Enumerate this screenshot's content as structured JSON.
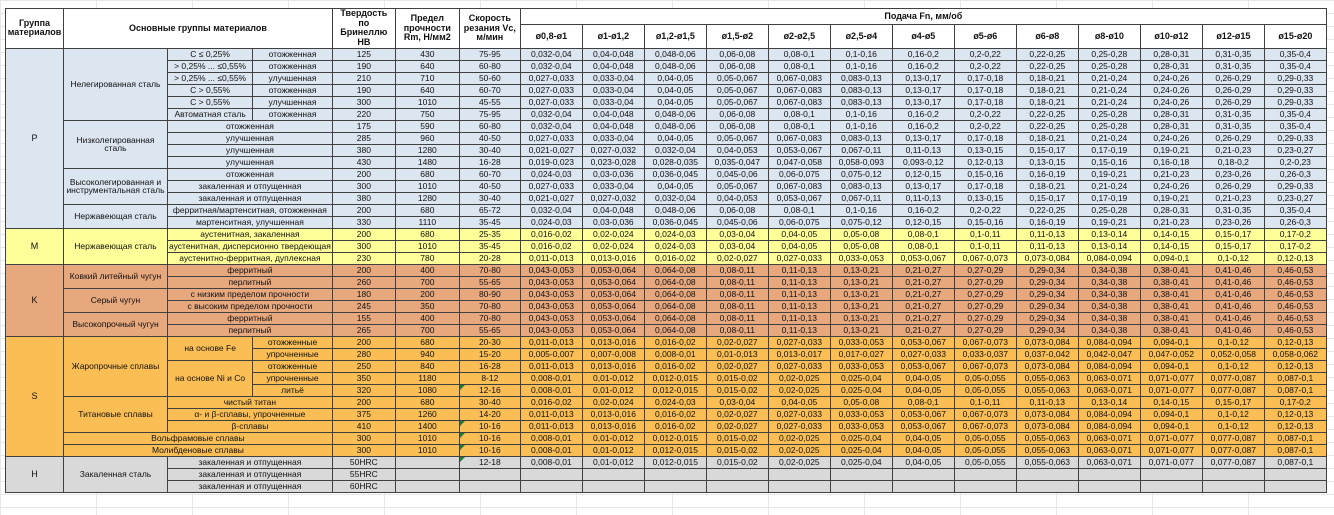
{
  "header": {
    "col_group": "Группа материалов",
    "col_main_groups": "Основные группы материалов",
    "col_hardness": "Твердость по Бринеллю HB",
    "col_strength": "Предел прочности Rm, Н/мм2",
    "col_speed": "Скорость резания Vc, м/мин",
    "feed_title": "Подача Fn, мм/об",
    "feed_cols": [
      "ø0,8-ø1",
      "ø1-ø1,2",
      "ø1,2-ø1,5",
      "ø1,5-ø2",
      "ø2-ø2,5",
      "ø2,5-ø4",
      "ø4-ø5",
      "ø5-ø6",
      "ø6-ø8",
      "ø8-ø10",
      "ø10-ø12",
      "ø12-ø15",
      "ø15-ø20"
    ]
  },
  "colors": {
    "P": "#dce6f1",
    "M": "#ffff99",
    "K": "#e8a87e",
    "S": "#fbbe55",
    "H": "#d9d9d9",
    "border": "#404040",
    "grid": "#e7e7e7",
    "marker_green": "#1e7e34"
  },
  "feed_profiles": {
    "A": [
      "0,032-0,04",
      "0,04-0,048",
      "0,048-0,06",
      "0,06-0,08",
      "0,08-0,1",
      "0,1-0,16",
      "0,16-0,2",
      "0,2-0,22",
      "0,22-0,25",
      "0,25-0,28",
      "0,28-0,31",
      "0,31-0,35",
      "0,35-0,4"
    ],
    "B": [
      "0,027-0,033",
      "0,033-0,04",
      "0,04-0,05",
      "0,05-0,067",
      "0,067-0,083",
      "0,083-0,13",
      "0,13-0,17",
      "0,17-0,18",
      "0,18-0,21",
      "0,21-0,24",
      "0,24-0,26",
      "0,26-0,29",
      "0,29-0,33"
    ],
    "C": [
      "0,021-0,027",
      "0,027-0,032",
      "0,032-0,04",
      "0,04-0,053",
      "0,053-0,067",
      "0,067-0,11",
      "0,11-0,13",
      "0,13-0,15",
      "0,15-0,17",
      "0,17-0,19",
      "0,19-0,21",
      "0,21-0,23",
      "0,23-0,27"
    ],
    "D": [
      "0,024-0,03",
      "0,03-0,036",
      "0,036-0,045",
      "0,045-0,06",
      "0,06-0,075",
      "0,075-0,12",
      "0,12-0,15",
      "0,15-0,16",
      "0,16-0,19",
      "0,19-0,21",
      "0,21-0,23",
      "0,23-0,26",
      "0,26-0,3"
    ],
    "E": [
      "0,019-0,023",
      "0,023-0,028",
      "0,028-0,035",
      "0,035-0,047",
      "0,047-0,058",
      "0,058-0,093",
      "0,093-0,12",
      "0,12-0,13",
      "0,13-0,15",
      "0,15-0,16",
      "0,16-0,18",
      "0,18-0,2",
      "0,2-0,23"
    ],
    "F": [
      "0,016-0,02",
      "0,02-0,024",
      "0,024-0,03",
      "0,03-0,04",
      "0,04-0,05",
      "0,05-0,08",
      "0,08-0,1",
      "0,1-0,11",
      "0,11-0,13",
      "0,13-0,14",
      "0,14-0,15",
      "0,15-0,17",
      "0,17-0,2"
    ],
    "G": [
      "0,011-0,013",
      "0,013-0,016",
      "0,016-0,02",
      "0,02-0,027",
      "0,027-0,033",
      "0,033-0,053",
      "0,053-0,067",
      "0,067-0,073",
      "0,073-0,084",
      "0,084-0,094",
      "0,094-0,1",
      "0,1-0,12",
      "0,12-0,13"
    ],
    "H": [
      "0,043-0,053",
      "0,053-0,064",
      "0,064-0,08",
      "0,08-0,11",
      "0,11-0,13",
      "0,13-0,21",
      "0,21-0,27",
      "0,27-0,29",
      "0,29-0,34",
      "0,34-0,38",
      "0,38-0,41",
      "0,41-0,46",
      "0,46-0,53"
    ],
    "I": [
      "0,005-0,007",
      "0,007-0,008",
      "0,008-0,01",
      "0,01-0,013",
      "0,013-0,017",
      "0,017-0,027",
      "0,027-0,033",
      "0,033-0,037",
      "0,037-0,042",
      "0,042-0,047",
      "0,047-0,052",
      "0,052-0,058",
      "0,058-0,062"
    ],
    "J": [
      "0,008-0,01",
      "0,01-0,012",
      "0,012-0,015",
      "0,015-0,02",
      "0,02-0,025",
      "0,025-0,04",
      "0,04-0,05",
      "0,05-0,055",
      "0,055-0,063",
      "0,063-0,071",
      "0,071-0,077",
      "0,077-0,087",
      "0,087-0,1"
    ],
    "EMPTY": [
      "",
      "",
      "",
      "",
      "",
      "",
      "",
      "",
      "",
      "",
      "",
      "",
      ""
    ]
  },
  "rows": [
    {
      "g": "P",
      "group": "P",
      "group_rowspan": 15,
      "labels": [
        {
          "t": "Нелегированная сталь",
          "rs": 6
        },
        {
          "t": "C ≤ 0,25%"
        },
        {
          "t": "отожженная"
        }
      ],
      "hb": "125",
      "rm": "430",
      "vc": "75-95",
      "profile": "A"
    },
    {
      "g": "P",
      "labels": [
        {
          "t": "> 0,25% ... ≤0,55%",
          "clip": true
        },
        {
          "t": "отожженная"
        }
      ],
      "hb": "190",
      "rm": "640",
      "vc": "60-80",
      "profile": "A"
    },
    {
      "g": "P",
      "labels": [
        {
          "t": "> 0,25% ... ≤0,55%",
          "clip": true
        },
        {
          "t": "улучшенная"
        }
      ],
      "hb": "210",
      "rm": "710",
      "vc": "50-60",
      "profile": "B"
    },
    {
      "g": "P",
      "labels": [
        {
          "t": "C > 0,55%"
        },
        {
          "t": "отожженная"
        }
      ],
      "hb": "190",
      "rm": "640",
      "vc": "60-70",
      "profile": "B"
    },
    {
      "g": "P",
      "labels": [
        {
          "t": "C > 0,55%"
        },
        {
          "t": "улучшенная"
        }
      ],
      "hb": "300",
      "rm": "1010",
      "vc": "45-55",
      "profile": "B"
    },
    {
      "g": "P",
      "labels": [
        {
          "t": "Автоматная сталь",
          "clip": true
        },
        {
          "t": "отожженная"
        }
      ],
      "hb": "220",
      "rm": "750",
      "vc": "75-95",
      "profile": "A"
    },
    {
      "g": "P",
      "labels": [
        {
          "t": "Низколегированная сталь",
          "rs": 4
        },
        {
          "t": "отожженная",
          "cs": 2
        }
      ],
      "hb": "175",
      "rm": "590",
      "vc": "60-80",
      "profile": "A"
    },
    {
      "g": "P",
      "labels": [
        {
          "t": "улучшенная",
          "cs": 2
        }
      ],
      "hb": "285",
      "rm": "960",
      "vc": "40-50",
      "profile": "B"
    },
    {
      "g": "P",
      "labels": [
        {
          "t": "улучшенная",
          "cs": 2
        }
      ],
      "hb": "380",
      "rm": "1280",
      "vc": "30-40",
      "profile": "C"
    },
    {
      "g": "P",
      "labels": [
        {
          "t": "улучшенная",
          "cs": 2
        }
      ],
      "hb": "430",
      "rm": "1480",
      "vc": "16-28",
      "profile": "E"
    },
    {
      "g": "P",
      "labels": [
        {
          "t": "Высоколегированная и инструментальная сталь",
          "rs": 3
        },
        {
          "t": "отожженная",
          "cs": 2
        }
      ],
      "hb": "200",
      "rm": "680",
      "vc": "60-70",
      "profile": "D"
    },
    {
      "g": "P",
      "labels": [
        {
          "t": "закаленная и отпущенная",
          "cs": 2
        }
      ],
      "hb": "300",
      "rm": "1010",
      "vc": "40-50",
      "profile": "B"
    },
    {
      "g": "P",
      "labels": [
        {
          "t": "закаленная и отпущенная",
          "cs": 2
        }
      ],
      "hb": "380",
      "rm": "1280",
      "vc": "30-40",
      "profile": "C"
    },
    {
      "g": "P",
      "labels": [
        {
          "t": "Нержавеющая сталь",
          "rs": 2
        },
        {
          "t": "ферритная/мартенситная, отожженная",
          "cs": 2,
          "clip": true
        }
      ],
      "hb": "200",
      "rm": "680",
      "vc": "65-72",
      "profile": "A"
    },
    {
      "g": "P",
      "labels": [
        {
          "t": "мартенситная, улучшенная",
          "cs": 2
        }
      ],
      "hb": "330",
      "rm": "1110",
      "vc": "35-45",
      "profile": "D"
    },
    {
      "g": "M",
      "group": "M",
      "group_rowspan": 3,
      "labels": [
        {
          "t": "Нержавеющая сталь",
          "rs": 3
        },
        {
          "t": "аустенитная, закаленная",
          "cs": 2
        }
      ],
      "hb": "200",
      "rm": "680",
      "vc": "25-35",
      "profile": "F"
    },
    {
      "g": "M",
      "labels": [
        {
          "t": "аустенитная, дисперсионно твердеющая",
          "cs": 2,
          "clip": true
        }
      ],
      "hb": "300",
      "rm": "1010",
      "vc": "35-45",
      "profile": "F"
    },
    {
      "g": "M",
      "labels": [
        {
          "t": "аустенитно-ферритная, дуплексная",
          "cs": 2,
          "clip": true
        }
      ],
      "hb": "230",
      "rm": "780",
      "vc": "20-28",
      "profile": "G"
    },
    {
      "g": "K",
      "group": "K",
      "group_rowspan": 6,
      "labels": [
        {
          "t": "Ковкий литейный чугун",
          "rs": 2
        },
        {
          "t": "ферритный",
          "cs": 2
        }
      ],
      "hb": "200",
      "rm": "400",
      "vc": "70-80",
      "profile": "H"
    },
    {
      "g": "K",
      "labels": [
        {
          "t": "перлитный",
          "cs": 2
        }
      ],
      "hb": "260",
      "rm": "700",
      "vc": "55-65",
      "profile": "H"
    },
    {
      "g": "K",
      "labels": [
        {
          "t": "Серый чугун",
          "rs": 2
        },
        {
          "t": "с низким пределом прочности",
          "cs": 2
        }
      ],
      "hb": "180",
      "rm": "200",
      "vc": "80-90",
      "profile": "H"
    },
    {
      "g": "K",
      "labels": [
        {
          "t": "с высоким пределом прочности",
          "cs": 2
        }
      ],
      "hb": "245",
      "rm": "350",
      "vc": "70-80",
      "profile": "H"
    },
    {
      "g": "K",
      "labels": [
        {
          "t": "Высокопрочный чугун",
          "rs": 2
        },
        {
          "t": "ферритный",
          "cs": 2
        }
      ],
      "hb": "155",
      "rm": "400",
      "vc": "70-80",
      "profile": "H"
    },
    {
      "g": "K",
      "labels": [
        {
          "t": "перлитный",
          "cs": 2
        }
      ],
      "hb": "265",
      "rm": "700",
      "vc": "55-65",
      "profile": "H"
    },
    {
      "g": "S",
      "group": "S",
      "group_rowspan": 10,
      "labels": [
        {
          "t": "Жаропрочные сплавы",
          "rs": 5
        },
        {
          "t": "на основе Fe",
          "rs": 2
        },
        {
          "t": "отожженные"
        }
      ],
      "hb": "200",
      "rm": "680",
      "vc": "20-30",
      "profile": "G"
    },
    {
      "g": "S",
      "labels": [
        {
          "t": "упрочненные"
        }
      ],
      "hb": "280",
      "rm": "940",
      "vc": "15-20",
      "profile": "I"
    },
    {
      "g": "S",
      "labels": [
        {
          "t": "на основе Ni и Co",
          "rs": 3,
          "clip": true
        },
        {
          "t": "отожженные"
        }
      ],
      "hb": "250",
      "rm": "840",
      "vc": "16-28",
      "profile": "G"
    },
    {
      "g": "S",
      "labels": [
        {
          "t": "упрочненные"
        }
      ],
      "hb": "350",
      "rm": "1180",
      "vc": "8-12",
      "profile": "J"
    },
    {
      "g": "S",
      "labels": [
        {
          "t": "литьё"
        }
      ],
      "hb": "320",
      "rm": "1080",
      "vc": "12-16",
      "profile": "J",
      "marker": true
    },
    {
      "g": "S",
      "labels": [
        {
          "t": "Титановые сплавы",
          "rs": 3
        },
        {
          "t": "чистый титан",
          "cs": 2
        }
      ],
      "hb": "200",
      "rm": "680",
      "vc": "30-40",
      "profile": "F"
    },
    {
      "g": "S",
      "labels": [
        {
          "t": "α- и β-сплавы, упрочненные",
          "cs": 2
        }
      ],
      "hb": "375",
      "rm": "1260",
      "vc": "14-20",
      "profile": "G"
    },
    {
      "g": "S",
      "labels": [
        {
          "t": "β-сплавы",
          "cs": 2
        }
      ],
      "hb": "410",
      "rm": "1400",
      "vc": "10-16",
      "profile": "G",
      "marker": true
    },
    {
      "g": "S",
      "labels": [
        {
          "t": "Вольфрамовые сплавы",
          "cs": 3
        }
      ],
      "hb": "300",
      "rm": "1010",
      "vc": "10-16",
      "profile": "J",
      "marker": true
    },
    {
      "g": "S",
      "labels": [
        {
          "t": "Молибденовые сплавы",
          "cs": 3
        }
      ],
      "hb": "300",
      "rm": "1010",
      "vc": "10-16",
      "profile": "J",
      "marker": true
    },
    {
      "g": "H",
      "group": "H",
      "group_rowspan": 3,
      "labels": [
        {
          "t": "Закаленная сталь",
          "rs": 3
        },
        {
          "t": "закаленная и отпущенная",
          "cs": 2
        }
      ],
      "hb": "50HRC",
      "rm": "",
      "vc": "12-18",
      "profile": "J",
      "marker": true
    },
    {
      "g": "H",
      "labels": [
        {
          "t": "закаленная и отпущенная",
          "cs": 2
        }
      ],
      "hb": "55HRC",
      "rm": "",
      "vc": "",
      "profile": "EMPTY"
    },
    {
      "g": "H",
      "labels": [
        {
          "t": "закаленная и отпущенная",
          "cs": 2
        }
      ],
      "hb": "60HRC",
      "rm": "",
      "vc": "",
      "profile": "EMPTY"
    }
  ]
}
